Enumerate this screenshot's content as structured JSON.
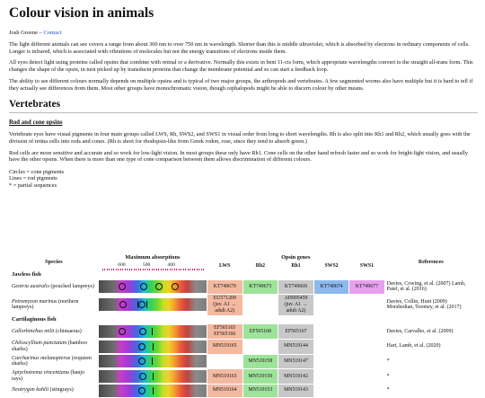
{
  "title": "Colour vision in animals",
  "byline": {
    "author": "Josh Greene",
    "sep": " – ",
    "contact": "Contact"
  },
  "intro": [
    "The light different animals can see covers a range from about 300 nm to over 750 nm in wavelength. Shorter than this is middle ultraviolet, which is absorbed by electrons in ordinary components of cells. Longer is infrared, which is associated with vibrations of molecules but not the energy transitions of electrons inside them.",
    "All eyes detect light using proteins called opsins that combine with retinal or a derivative. Normally this exists in bent 11-cis form, which appropriate wavelengths convert to the straight all-trans form. This changes the shape of the opsin, in turn picked up by transducin proteins that change the membrane potential and so can start a feedback loop.",
    "The ability to see different colours normally depends on multiple opsins and is typical of two major groups, the arthropods and vertebrates. A few segmented worms also have multiple but it is hard to tell if they actually see differences from them. Most other groups have monochromatic vision, though cephalopods might be able to discern colour by other means."
  ],
  "section": "Vertebrates",
  "subsection": "Rod and cone opsins",
  "vert_paras": [
    "Vertebrate eyes have visual pigments in four main groups called LWS, Rh, SWS2, and SWS1 in visual order from long to short wavelengths. Rh is also split into Rh1 and Rh2, which usually goes with the division of retina cells into rods and cones. (Rh is short for rhodopsin-like from Greek rodon, rose, since they tend to absorb green.)",
    "Rod cells are more sensitive and accurate and so work for low-light vision. In most groups these only have Rh1. Cone cells on the other hand refresh faster and so work for bright-light vision, and usually have the other opsins. When there is more than one type of cone comparison between them allows discrimination of different colours."
  ],
  "legend": [
    "Circles = cone pigments",
    "Lines = rod pigments",
    "* = partial sequences"
  ],
  "table": {
    "headers": {
      "species": "Species",
      "absorb": "Maximum absorptions",
      "opsin_group": "Opsin genes",
      "lws": "LWS",
      "rh2": "Rh2",
      "rh1": "Rh1",
      "sws2": "SWS2",
      "sws1": "SWS1",
      "refs": "References"
    },
    "scale_ticks": [
      "600",
      "500",
      "400"
    ],
    "groups": [
      {
        "name": "Jawless fish",
        "rows": [
          {
            "sci": "Geotria australis",
            "common": " (pouched lampreys)",
            "lws": "KT749679",
            "rh2": "KT749673",
            "rh1": "KT749669",
            "sws2": "KT749674",
            "sws1": "KT749677",
            "refs": "Davies, Cowing, et al. (2007) Lamb, Patel, et al. (2016)",
            "marks": {
              "circles": [
                0.22,
                0.42,
                0.56,
                0.71
              ],
              "lines": []
            }
          },
          {
            "sci": "Petromyzon marinus",
            "common": " (northern lampreys)",
            "lws": "EU571209 (juv. A1 → adult A2)",
            "rh2": "",
            "rh1": "AH005459 (juv. A1 → adult A2)",
            "sws2": "",
            "sws1": "",
            "refs": "Davies, Collin, Hunt (2009) Morshedian, Toomey, et al. (2017)",
            "marks": {
              "circles": [
                0.23,
                0.4
              ],
              "lines": [
                0.36,
                0.44
              ]
            }
          }
        ]
      },
      {
        "name": "Cartilaginous fish",
        "rows": [
          {
            "sci": "Callorhinchus milii",
            "common": " (chimaeras)",
            "lws": "EF565165 EF565166",
            "rh2": "EF565168",
            "rh1": "EF565167",
            "sws2": "",
            "sws1": "",
            "refs": "Davies, Carvalho, et al. (2009)",
            "marks": {
              "circles": [
                0.22,
                0.41
              ],
              "lines": [
                0.49
              ]
            }
          },
          {
            "sci": "Chiloscyllium punctatum",
            "common": " (bamboo sharks)",
            "lws": "MN519165",
            "rh2": "",
            "rh1": "MN519144",
            "sws2": "",
            "sws1": "",
            "refs": "Hart, Lamb, et al. (2020)",
            "marks": {
              "circles": [
                0.4
              ],
              "lines": [
                0.5
              ]
            }
          },
          {
            "sci": "Carcharinus melanopterus",
            "common": " (requiem sharks)",
            "lws": "",
            "rh2": "MN519158",
            "rh1": "MN519147",
            "sws2": "",
            "sws1": "",
            "refs": "*",
            "marks": {
              "circles": [
                0.4
              ],
              "lines": [
                0.49
              ]
            }
          },
          {
            "sci": "Aptychotrema vincentiana",
            "common": " (banjo rays)",
            "lws": "MN519163",
            "rh2": "MN519150",
            "rh1": "MN519142",
            "sws2": "",
            "sws1": "",
            "refs": "*",
            "marks": {
              "circles": [
                0.41
              ],
              "lines": [
                0.5
              ]
            }
          },
          {
            "sci": "Neotrygon kuhlii",
            "common": " (stingrays)",
            "lws": "MN519164",
            "rh2": "MN519153",
            "rh1": "MN519143",
            "sws2": "",
            "sws1": "",
            "refs": "*",
            "marks": {
              "circles": [
                0.4
              ],
              "lines": [
                0.5
              ]
            }
          }
        ]
      }
    ]
  }
}
